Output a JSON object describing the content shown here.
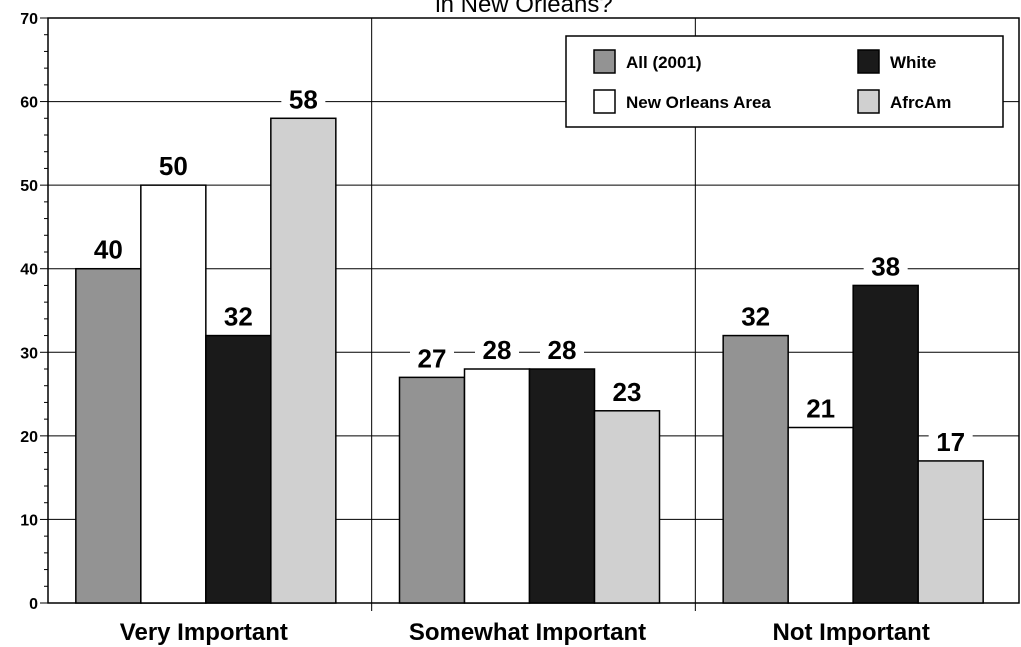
{
  "chart_data": {
    "type": "bar",
    "title": "in New Orleans?",
    "categories": [
      "Very Important",
      "Somewhat Important",
      "Not Important"
    ],
    "series": [
      {
        "name": "All (2001)",
        "values": [
          40,
          27,
          32
        ],
        "color": "#939393"
      },
      {
        "name": "New Orleans Area",
        "values": [
          50,
          28,
          21
        ],
        "color": "#ffffff"
      },
      {
        "name": "White",
        "values": [
          32,
          28,
          38
        ],
        "color": "#1a1a1a"
      },
      {
        "name": "AfrcAm",
        "values": [
          58,
          23,
          17
        ],
        "color": "#d0d0d0"
      }
    ],
    "ylim": [
      0,
      70
    ],
    "yticks": [
      0,
      10,
      20,
      30,
      40,
      50,
      60,
      70
    ],
    "grid": true,
    "legend_position": "top-right",
    "xlabel": "",
    "ylabel": ""
  }
}
